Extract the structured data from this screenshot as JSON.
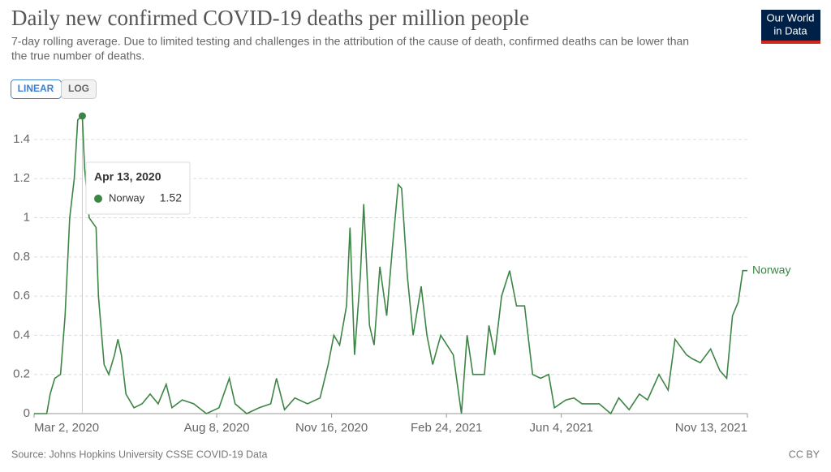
{
  "chart_data": {
    "type": "line",
    "title": "Daily new confirmed COVID-19 deaths per million people",
    "subtitle": [
      "7-day rolling average. Due to limited testing and challenges in the attribution of the cause of death, confirmed deaths can be lower than",
      "the true number of deaths."
    ],
    "buttons": [
      "LINEAR",
      "LOG"
    ],
    "logo": [
      "Our World",
      "in Data"
    ],
    "source": "Source: Johns Hopkins University CSSE COVID-19 Data",
    "license": "CC BY",
    "x": [
      "2020-03-02",
      "2020-03-13",
      "2020-03-16",
      "2020-03-20",
      "2020-03-25",
      "2020-03-29",
      "2020-04-02",
      "2020-04-06",
      "2020-04-09",
      "2020-04-13",
      "2020-04-15",
      "2020-04-19",
      "2020-04-25",
      "2020-04-27",
      "2020-05-02",
      "2020-05-06",
      "2020-05-11",
      "2020-05-14",
      "2020-05-17",
      "2020-05-21",
      "2020-05-28",
      "2020-06-04",
      "2020-06-11",
      "2020-06-18",
      "2020-06-25",
      "2020-06-30",
      "2020-07-09",
      "2020-07-19",
      "2020-07-30",
      "2020-08-10",
      "2020-08-19",
      "2020-08-24",
      "2020-09-03",
      "2020-09-14",
      "2020-09-24",
      "2020-09-29",
      "2020-10-06",
      "2020-10-15",
      "2020-10-26",
      "2020-11-06",
      "2020-11-13",
      "2020-11-18",
      "2020-11-23",
      "2020-11-29",
      "2020-12-02",
      "2020-12-06",
      "2020-12-11",
      "2020-12-14",
      "2020-12-19",
      "2020-12-23",
      "2020-12-28",
      "2021-01-03",
      "2021-01-08",
      "2021-01-13",
      "2021-01-16",
      "2021-01-21",
      "2021-01-26",
      "2021-02-02",
      "2021-02-07",
      "2021-02-12",
      "2021-02-19",
      "2021-03-02",
      "2021-03-09",
      "2021-03-14",
      "2021-03-19",
      "2021-03-29",
      "2021-04-02",
      "2021-04-07",
      "2021-04-13",
      "2021-04-20",
      "2021-04-26",
      "2021-05-03",
      "2021-05-10",
      "2021-05-17",
      "2021-05-24",
      "2021-05-29",
      "2021-06-08",
      "2021-06-15",
      "2021-06-22",
      "2021-07-07",
      "2021-07-17",
      "2021-07-24",
      "2021-08-02",
      "2021-08-11",
      "2021-08-18",
      "2021-08-28",
      "2021-09-05",
      "2021-09-11",
      "2021-09-21",
      "2021-09-26",
      "2021-10-03",
      "2021-10-12",
      "2021-10-20",
      "2021-10-26",
      "2021-10-31",
      "2021-11-05",
      "2021-11-09",
      "2021-11-13"
    ],
    "series": [
      {
        "name": "Norway",
        "color": "#3c8545",
        "values": [
          0,
          0,
          0.1,
          0.18,
          0.2,
          0.5,
          1.0,
          1.2,
          1.5,
          1.52,
          1.25,
          1.0,
          0.95,
          0.6,
          0.25,
          0.2,
          0.3,
          0.38,
          0.3,
          0.1,
          0.03,
          0.05,
          0.1,
          0.05,
          0.15,
          0.03,
          0.07,
          0.05,
          0,
          0.03,
          0.18,
          0.05,
          0,
          0.03,
          0.05,
          0.18,
          0.02,
          0.08,
          0.05,
          0.08,
          0.25,
          0.4,
          0.35,
          0.55,
          0.95,
          0.3,
          0.7,
          1.07,
          0.45,
          0.35,
          0.75,
          0.5,
          0.85,
          1.17,
          1.15,
          0.7,
          0.4,
          0.65,
          0.4,
          0.25,
          0.4,
          0.3,
          0,
          0.4,
          0.2,
          0.2,
          0.45,
          0.3,
          0.6,
          0.73,
          0.55,
          0.55,
          0.2,
          0.18,
          0.2,
          0.03,
          0.07,
          0.08,
          0.05,
          0.05,
          0,
          0.08,
          0.02,
          0.1,
          0.07,
          0.2,
          0.12,
          0.38,
          0.3,
          0.28,
          0.26,
          0.33,
          0.22,
          0.18,
          0.5,
          0.57,
          0.73,
          0.73
        ]
      }
    ],
    "xlim": [
      "2020-03-02",
      "2021-11-13"
    ],
    "xticks": [
      {
        "value": "2020-03-02",
        "label": "Mar 2, 2020"
      },
      {
        "value": "2020-08-08",
        "label": "Aug 8, 2020"
      },
      {
        "value": "2020-11-16",
        "label": "Nov 16, 2020"
      },
      {
        "value": "2021-02-24",
        "label": "Feb 24, 2021"
      },
      {
        "value": "2021-06-04",
        "label": "Jun 4, 2021"
      },
      {
        "value": "2021-11-13",
        "label": "Nov 13, 2021"
      }
    ],
    "ylim": [
      0,
      1.52
    ],
    "yticks": [
      0,
      0.2,
      0.4,
      0.6,
      0.8,
      1,
      1.2,
      1.4
    ],
    "grid": true,
    "tooltip": {
      "date": "Apr 13, 2020",
      "x": "2020-04-13",
      "series": "Norway",
      "value": 1.52
    }
  }
}
